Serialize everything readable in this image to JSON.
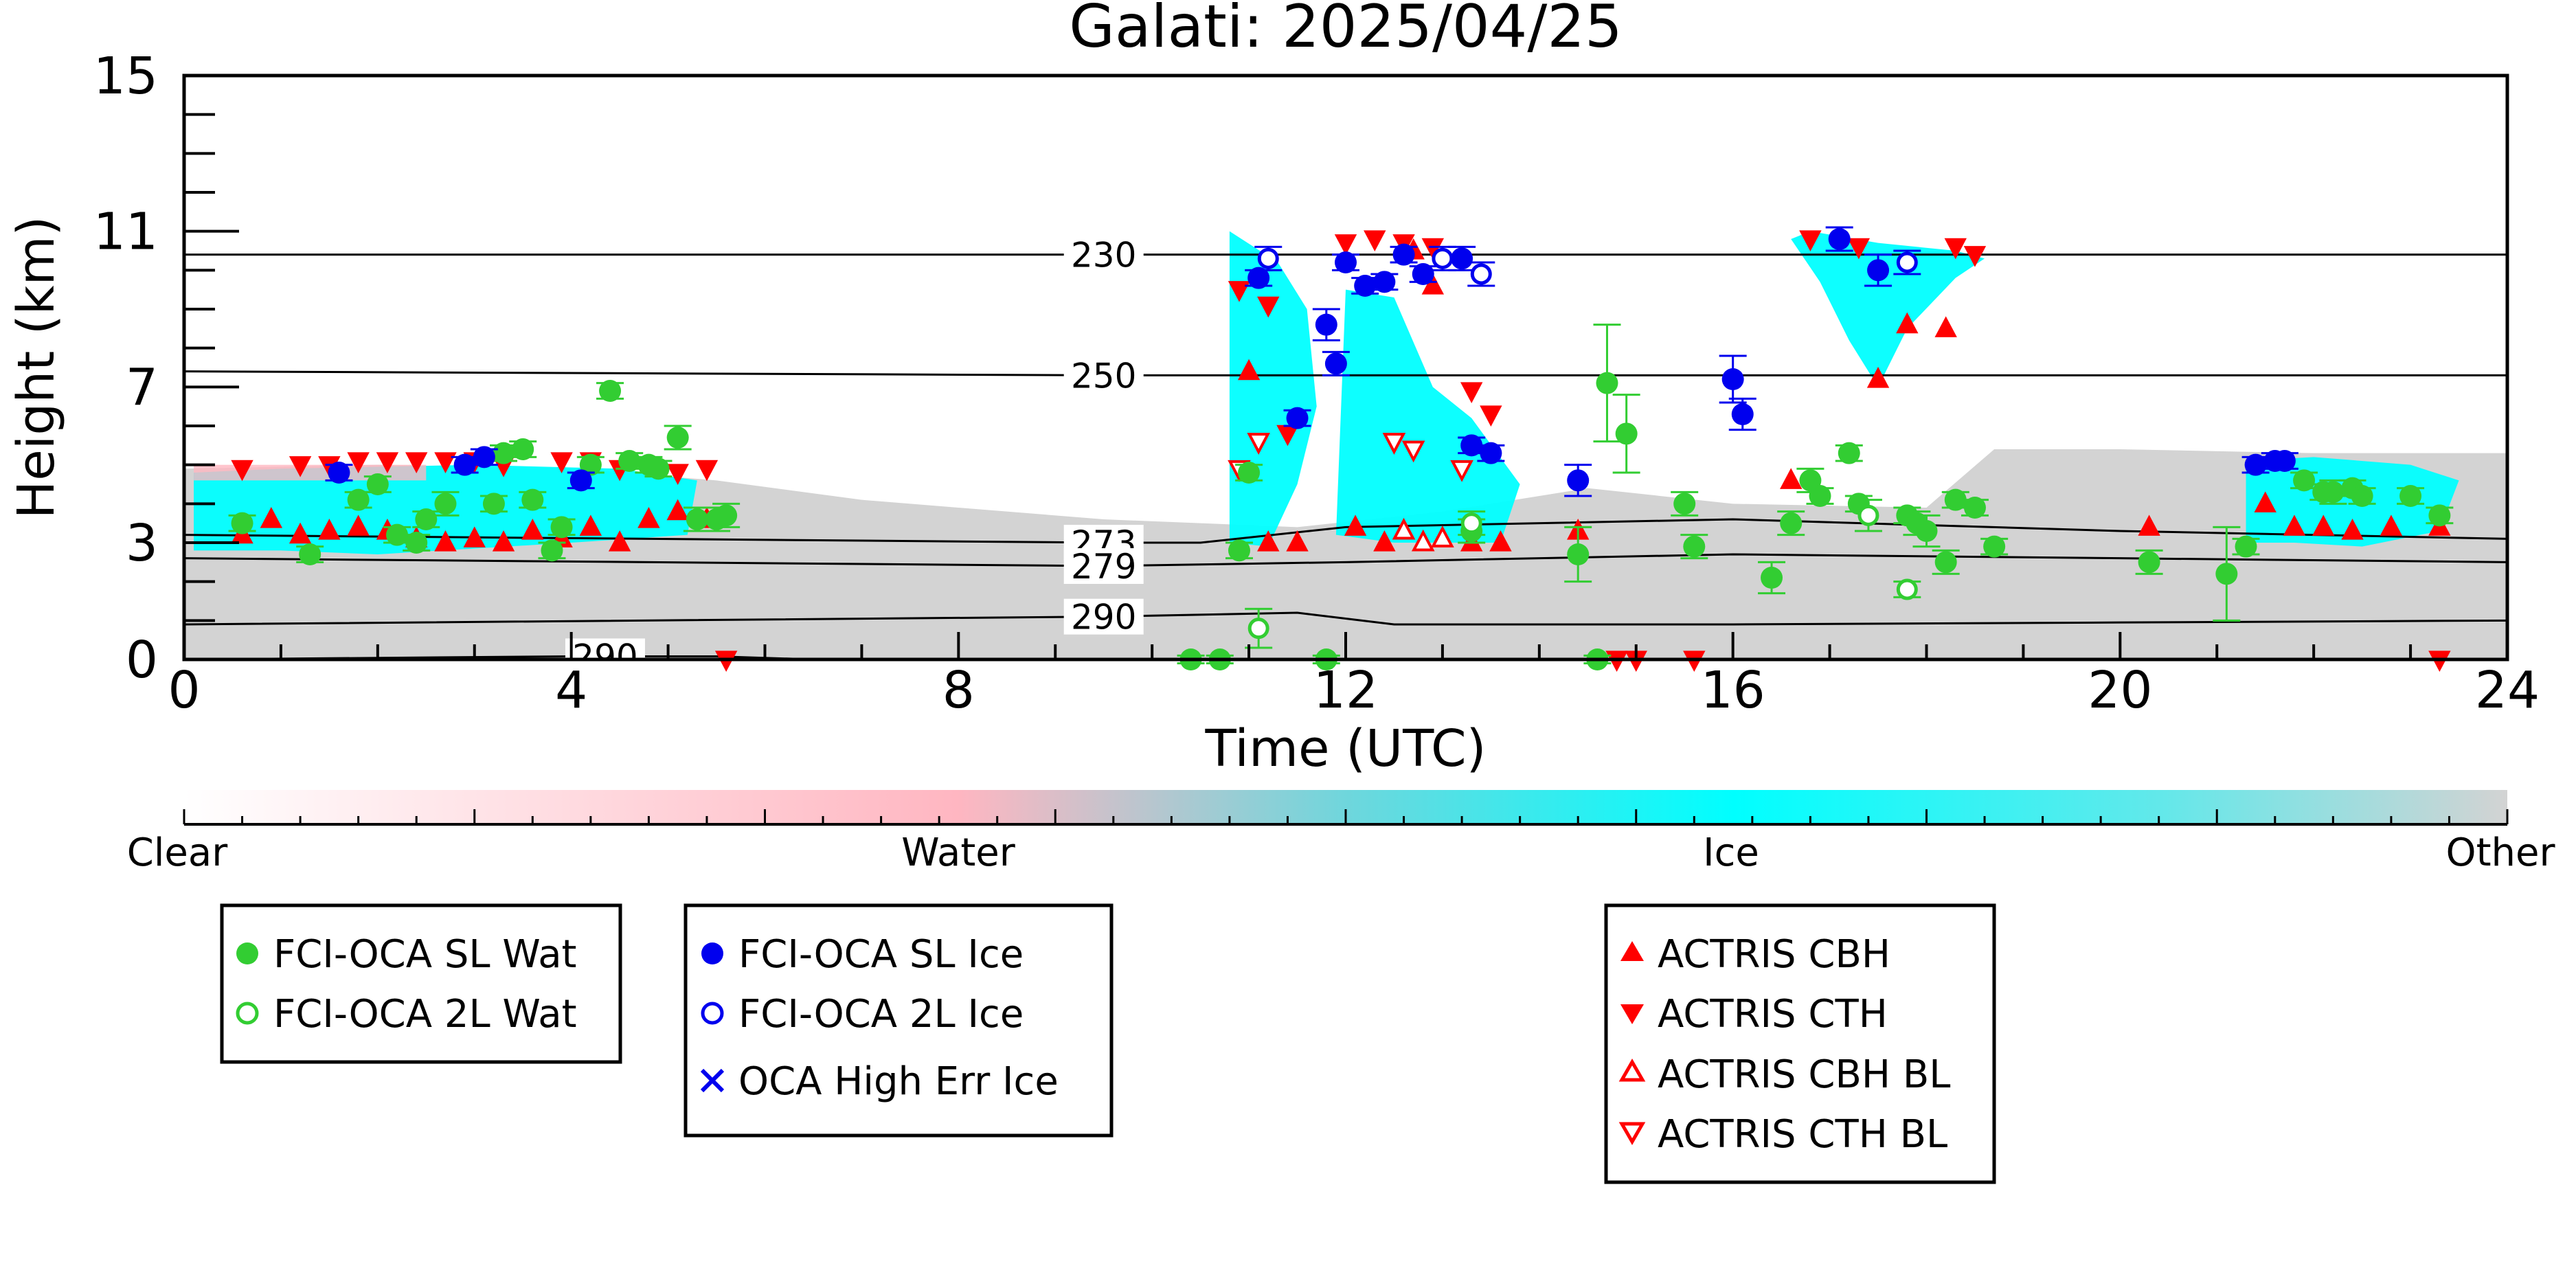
{
  "chart_data": {
    "type": "scatter",
    "title": "Galati: 2025/04/25",
    "xlabel": "Time (UTC)",
    "ylabel": "Height (km)",
    "xlim": [
      0,
      24
    ],
    "ylim": [
      0,
      15
    ],
    "x_ticks": [
      0,
      4,
      8,
      12,
      16,
      20,
      24
    ],
    "y_ticks": [
      0,
      3,
      7,
      11,
      15
    ],
    "isotherms": [
      {
        "label": "230",
        "points": [
          [
            0,
            10.4
          ],
          [
            9.5,
            10.4
          ],
          [
            24,
            10.4
          ]
        ]
      },
      {
        "label": "250",
        "points": [
          [
            0,
            7.4
          ],
          [
            9.5,
            7.3
          ],
          [
            24,
            7.3
          ]
        ]
      },
      {
        "label": "273",
        "points": [
          [
            0,
            3.2
          ],
          [
            9.5,
            3.0
          ],
          [
            10.5,
            3.0
          ],
          [
            12,
            3.4
          ],
          [
            16,
            3.6
          ],
          [
            20,
            3.3
          ],
          [
            24,
            3.1
          ]
        ]
      },
      {
        "label": "279",
        "points": [
          [
            0,
            2.6
          ],
          [
            9.5,
            2.4
          ],
          [
            12,
            2.5
          ],
          [
            16,
            2.7
          ],
          [
            20,
            2.6
          ],
          [
            24,
            2.5
          ]
        ]
      },
      {
        "label": "290",
        "points": [
          [
            0,
            0.9
          ],
          [
            9.5,
            1.1
          ],
          [
            11.5,
            1.2
          ],
          [
            12.5,
            0.9
          ],
          [
            16,
            0.9
          ],
          [
            20,
            0.95
          ],
          [
            24,
            1.0
          ]
        ]
      },
      {
        "label": "290",
        "points": [
          [
            0,
            0.0
          ],
          [
            4,
            0.08
          ],
          [
            5.5,
            0.08
          ],
          [
            6.5,
            0.0
          ]
        ]
      }
    ],
    "colorbar": {
      "categories": [
        "Clear",
        "Water",
        "Ice",
        "Other"
      ],
      "colors": [
        "#ffffff",
        "#ffb6c1",
        "#00ffff",
        "#d3d3d3"
      ]
    },
    "colors": {
      "cloud_ice": "#00ffff",
      "cloud_water": "#ffb6c1",
      "cloud_other": "#d3d3d3",
      "sl_wat": "#32cd32",
      "sl_ice": "#0000ee",
      "actris": "#ff0000"
    },
    "legend_groups": [
      {
        "items": [
          "FCI-OCA SL Wat",
          "FCI-OCA 2L Wat"
        ]
      },
      {
        "items": [
          "FCI-OCA SL Ice",
          "FCI-OCA 2L Ice",
          "OCA High Err Ice"
        ]
      },
      {
        "items": [
          "ACTRIS CBH",
          "ACTRIS CTH",
          "ACTRIS CBH BL",
          "ACTRIS CTH BL"
        ]
      }
    ],
    "series": [
      {
        "name": "FCI-OCA SL Wat",
        "points": [
          [
            0.6,
            3.5,
            0.2
          ],
          [
            1.3,
            2.7,
            0.2
          ],
          [
            1.8,
            4.1,
            0.2
          ],
          [
            2.0,
            4.5,
            0.2
          ],
          [
            2.2,
            3.2,
            0.2
          ],
          [
            2.5,
            3.6,
            0.2
          ],
          [
            2.7,
            4.0,
            0.3
          ],
          [
            2.4,
            3.0,
            0.2
          ],
          [
            3.2,
            4.0,
            0.2
          ],
          [
            3.3,
            5.3,
            0.2
          ],
          [
            3.5,
            5.4,
            0.2
          ],
          [
            3.6,
            4.1,
            0.2
          ],
          [
            3.8,
            2.8,
            0.2
          ],
          [
            3.9,
            3.4,
            0.2
          ],
          [
            4.2,
            5.0,
            0.2
          ],
          [
            4.4,
            6.9,
            0.2
          ],
          [
            4.6,
            5.1,
            0.2
          ],
          [
            4.8,
            5.0,
            0.2
          ],
          [
            4.9,
            4.9,
            0.2
          ],
          [
            5.1,
            5.7,
            0.3
          ],
          [
            5.3,
            3.6,
            0.3
          ],
          [
            5.5,
            3.6,
            0.3
          ],
          [
            5.6,
            3.7,
            0.3
          ],
          [
            10.4,
            0.0,
            0.1
          ],
          [
            10.7,
            0.0,
            0.1
          ],
          [
            10.9,
            2.8,
            0.2
          ],
          [
            11.0,
            4.8,
            0.2
          ],
          [
            11.8,
            0.0,
            0.1
          ],
          [
            13.3,
            3.3,
            0.3
          ],
          [
            14.4,
            2.7,
            0.7
          ],
          [
            14.6,
            0.0,
            0.1
          ],
          [
            14.7,
            7.1,
            1.5
          ],
          [
            14.9,
            5.8,
            1.0
          ],
          [
            15.5,
            4.0,
            0.3
          ],
          [
            15.6,
            2.9,
            0.3
          ],
          [
            16.4,
            2.1,
            0.4
          ],
          [
            16.6,
            3.5,
            0.3
          ],
          [
            16.8,
            4.6,
            0.3
          ],
          [
            16.9,
            4.2,
            0.2
          ],
          [
            17.2,
            5.3,
            0.2
          ],
          [
            17.3,
            4.0,
            0.2
          ],
          [
            17.8,
            3.7,
            0.2
          ],
          [
            17.9,
            3.5,
            0.3
          ],
          [
            18.0,
            3.3,
            0.4
          ],
          [
            18.2,
            2.5,
            0.3
          ],
          [
            18.3,
            4.1,
            0.2
          ],
          [
            18.5,
            3.9,
            0.2
          ],
          [
            18.7,
            2.9,
            0.2
          ],
          [
            20.3,
            2.5,
            0.3
          ],
          [
            21.1,
            2.2,
            1.2
          ],
          [
            21.3,
            2.9,
            0.2
          ],
          [
            21.9,
            4.6,
            0.2
          ],
          [
            22.1,
            4.3,
            0.2
          ],
          [
            22.2,
            4.3,
            0.3
          ],
          [
            22.4,
            4.4,
            0.2
          ],
          [
            22.5,
            4.2,
            0.2
          ],
          [
            23.0,
            4.2,
            0.2
          ],
          [
            23.3,
            3.7,
            0.2
          ]
        ]
      },
      {
        "name": "FCI-OCA 2L Wat",
        "points": [
          [
            11.1,
            0.8,
            0.5
          ],
          [
            13.3,
            3.5,
            0.3
          ],
          [
            17.4,
            3.7,
            0.4
          ],
          [
            17.8,
            1.8,
            0.2
          ]
        ]
      },
      {
        "name": "FCI-OCA SL Ice",
        "points": [
          [
            1.6,
            4.8,
            0.2
          ],
          [
            2.9,
            5.0,
            0.2
          ],
          [
            3.1,
            5.2,
            0.2
          ],
          [
            4.1,
            4.6,
            0.2
          ],
          [
            11.1,
            9.8,
            0.2
          ],
          [
            11.5,
            6.2,
            0.2
          ],
          [
            11.8,
            8.6,
            0.4
          ],
          [
            11.9,
            7.6,
            0.3
          ],
          [
            12.0,
            10.2,
            0.2
          ],
          [
            12.2,
            9.6,
            0.2
          ],
          [
            12.4,
            9.7,
            0.2
          ],
          [
            12.6,
            10.4,
            0.2
          ],
          [
            12.8,
            9.9,
            0.2
          ],
          [
            13.2,
            10.3,
            0.3
          ],
          [
            13.3,
            5.5,
            0.2
          ],
          [
            13.5,
            5.3,
            0.2
          ],
          [
            14.4,
            4.6,
            0.4
          ],
          [
            16.0,
            7.2,
            0.6
          ],
          [
            16.1,
            6.3,
            0.4
          ],
          [
            17.1,
            10.8,
            0.3
          ],
          [
            17.5,
            10.0,
            0.4
          ],
          [
            21.4,
            5.0,
            0.2
          ],
          [
            21.6,
            5.1,
            0.2
          ],
          [
            21.7,
            5.1,
            0.2
          ]
        ]
      },
      {
        "name": "FCI-OCA 2L Ice",
        "points": [
          [
            11.2,
            10.3,
            0.3
          ],
          [
            13.0,
            10.3,
            0.3
          ],
          [
            13.4,
            9.9,
            0.3
          ],
          [
            17.8,
            10.2,
            0.3
          ]
        ]
      },
      {
        "name": "ACTRIS CBH",
        "points": [
          [
            0.6,
            3.2
          ],
          [
            0.9,
            3.6
          ],
          [
            1.2,
            3.2
          ],
          [
            1.5,
            3.3
          ],
          [
            1.8,
            3.4
          ],
          [
            2.1,
            3.3
          ],
          [
            2.4,
            3.1
          ],
          [
            2.7,
            3.0
          ],
          [
            3.0,
            3.1
          ],
          [
            3.3,
            3.0
          ],
          [
            3.6,
            3.3
          ],
          [
            3.9,
            3.1
          ],
          [
            4.2,
            3.4
          ],
          [
            4.5,
            3.0
          ],
          [
            4.8,
            3.6
          ],
          [
            5.1,
            3.8
          ],
          [
            5.4,
            3.6
          ],
          [
            11.0,
            7.4
          ],
          [
            11.2,
            3.0
          ],
          [
            11.5,
            3.0
          ],
          [
            12.1,
            3.4
          ],
          [
            12.4,
            3.0
          ],
          [
            12.7,
            10.5
          ],
          [
            12.9,
            9.6
          ],
          [
            13.3,
            3.0
          ],
          [
            13.6,
            3.0
          ],
          [
            14.4,
            3.3
          ],
          [
            16.6,
            4.6
          ],
          [
            17.5,
            7.2
          ],
          [
            17.8,
            8.6
          ],
          [
            18.2,
            8.5
          ],
          [
            20.3,
            3.4
          ],
          [
            21.5,
            4.0
          ],
          [
            21.8,
            3.4
          ],
          [
            22.1,
            3.4
          ],
          [
            22.4,
            3.3
          ],
          [
            22.8,
            3.4
          ],
          [
            23.3,
            3.4
          ]
        ]
      },
      {
        "name": "ACTRIS CTH",
        "points": [
          [
            0.6,
            4.9
          ],
          [
            1.2,
            5.0
          ],
          [
            1.5,
            5.0
          ],
          [
            1.8,
            5.1
          ],
          [
            2.1,
            5.1
          ],
          [
            2.4,
            5.1
          ],
          [
            2.7,
            5.1
          ],
          [
            3.0,
            5.1
          ],
          [
            3.3,
            5.0
          ],
          [
            3.9,
            5.1
          ],
          [
            4.2,
            5.1
          ],
          [
            4.5,
            4.9
          ],
          [
            5.1,
            4.8
          ],
          [
            5.4,
            4.9
          ],
          [
            10.9,
            9.5
          ],
          [
            11.2,
            9.1
          ],
          [
            11.4,
            5.8
          ],
          [
            12.0,
            10.7
          ],
          [
            12.3,
            10.8
          ],
          [
            12.6,
            10.7
          ],
          [
            12.9,
            10.6
          ],
          [
            13.3,
            6.9
          ],
          [
            13.5,
            6.3
          ],
          [
            16.8,
            10.8
          ],
          [
            17.3,
            10.6
          ],
          [
            18.3,
            10.6
          ],
          [
            18.5,
            10.4
          ],
          [
            5.6,
            0.0
          ],
          [
            14.8,
            0.0
          ],
          [
            15.0,
            0.0
          ],
          [
            15.6,
            0.0
          ],
          [
            23.3,
            0.0
          ]
        ]
      },
      {
        "name": "ACTRIS CBH BL",
        "points": [
          [
            12.6,
            3.3
          ],
          [
            12.8,
            3.0
          ],
          [
            13.0,
            3.1
          ]
        ]
      },
      {
        "name": "ACTRIS CTH BL",
        "points": [
          [
            10.9,
            4.9
          ],
          [
            11.1,
            5.6
          ],
          [
            12.5,
            5.6
          ],
          [
            12.7,
            5.4
          ],
          [
            13.2,
            4.9
          ]
        ]
      }
    ]
  }
}
